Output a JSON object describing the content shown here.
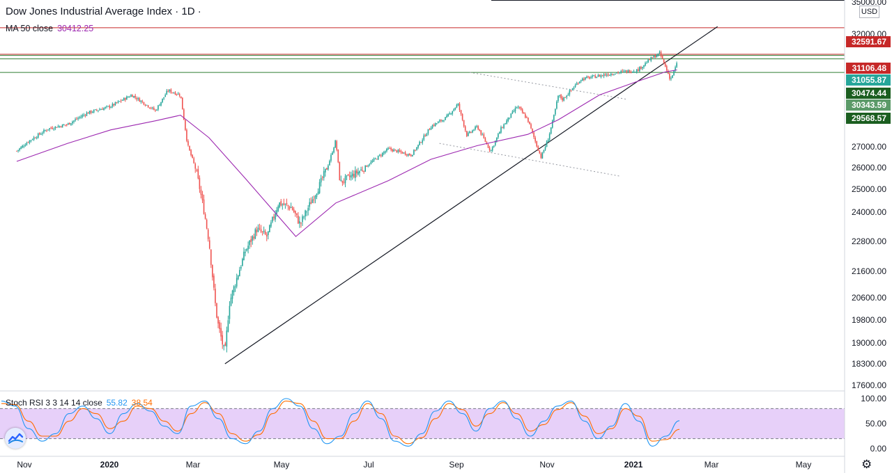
{
  "header": {
    "title": "Dow Jones Industrial Average Index · 1D ·",
    "ma_label": "MA 50 close",
    "ma_value": "30412.25",
    "currency": "USD"
  },
  "indicator": {
    "label": "Stoch RSI 3 3 14 14 close",
    "k_value": "55.82",
    "d_value": "38.54"
  },
  "colors": {
    "up": "#26a69a",
    "down": "#ef5350",
    "ma": "#9c27b0",
    "stoch_k": "#2196f3",
    "stoch_d": "#ff6d00",
    "band_fill": "#e1c4f7",
    "resistance": "#c62828",
    "support": "#2e7d32",
    "support_label": "#1b5e20",
    "mid_label": "#5b9a68"
  },
  "icons": {
    "logo": "tradingview-logo-icon",
    "settings": "gear-icon"
  },
  "chart_data": [
    {
      "type": "candlestick",
      "title": "Dow Jones Industrial Average Index · 1D ·",
      "x_ticks": [
        "Nov",
        "2020",
        "Mar",
        "May",
        "Jul",
        "Sep",
        "Nov",
        "2021",
        "Mar",
        "May"
      ],
      "y_ticks": [
        "35000.00",
        "32000.00",
        "27000.00",
        "26000.00",
        "25000.00",
        "24000.00",
        "22800.00",
        "21600.00",
        "20600.00",
        "19800.00",
        "19000.00",
        "18300.00",
        "17600.00"
      ],
      "ylim": [
        17200,
        35000
      ],
      "price_labels": [
        {
          "value": "32591.67",
          "style": "resistance"
        },
        {
          "value": "31106.48",
          "style": "resistance"
        },
        {
          "value": "31055.87",
          "style": "last"
        },
        {
          "value": "30474.44",
          "style": "support"
        },
        {
          "value": "30343.59",
          "style": "mid"
        },
        {
          "value": "29568.57",
          "style": "support"
        }
      ],
      "horizontal_levels": [
        {
          "value": 32591.67,
          "color": "resistance"
        },
        {
          "value": 31106.48,
          "color": "resistance"
        },
        {
          "value": 31055.87,
          "color": "support"
        },
        {
          "value": 30900,
          "color": "support"
        },
        {
          "value": 30300,
          "color": "support"
        }
      ],
      "series": [
        {
          "name": "Price",
          "x": [
            "2019-10-21",
            "2019-11-04",
            "2019-11-18",
            "2019-12-02",
            "2019-12-16",
            "2020-01-02",
            "2020-01-17",
            "2020-02-03",
            "2020-02-12",
            "2020-02-21",
            "2020-02-26",
            "2020-03-03",
            "2020-03-09",
            "2020-03-12",
            "2020-03-16",
            "2020-03-18",
            "2020-03-23",
            "2020-03-26",
            "2020-04-06",
            "2020-04-14",
            "2020-04-21",
            "2020-04-29",
            "2020-05-08",
            "2020-05-14",
            "2020-05-27",
            "2020-06-03",
            "2020-06-08",
            "2020-06-11",
            "2020-06-26",
            "2020-07-15",
            "2020-07-31",
            "2020-08-14",
            "2020-08-25",
            "2020-09-02",
            "2020-09-08",
            "2020-09-15",
            "2020-09-24",
            "2020-10-01",
            "2020-10-12",
            "2020-10-19",
            "2020-10-28",
            "2020-11-02",
            "2020-11-06",
            "2020-11-09",
            "2020-11-12",
            "2020-11-25",
            "2020-12-08",
            "2020-12-21",
            "2021-01-04",
            "2021-01-14",
            "2021-01-21",
            "2021-01-29",
            "2021-02-03"
          ],
          "values": [
            26800,
            27250,
            27800,
            28000,
            28500,
            28800,
            29300,
            28600,
            29500,
            29300,
            27100,
            25900,
            23900,
            22800,
            20500,
            19700,
            18600,
            20400,
            22400,
            23300,
            23000,
            24400,
            24200,
            23500,
            25100,
            26200,
            27300,
            25300,
            25900,
            26900,
            26600,
            27900,
            28300,
            28900,
            27500,
            27900,
            26800,
            27800,
            28800,
            28200,
            26500,
            27400,
            28400,
            29300,
            29100,
            30000,
            30150,
            30300,
            30400,
            30900,
            31150,
            29980,
            30700
          ]
        },
        {
          "name": "MA 50 close",
          "x": [
            "2019-10-21",
            "2019-12-02",
            "2020-01-02",
            "2020-02-03",
            "2020-02-21",
            "2020-03-12",
            "2020-04-06",
            "2020-05-11",
            "2020-06-08",
            "2020-07-15",
            "2020-08-14",
            "2020-09-15",
            "2020-10-19",
            "2020-11-09",
            "2020-12-08",
            "2021-01-04",
            "2021-01-25",
            "2021-02-03"
          ],
          "values": [
            26300,
            27150,
            27750,
            28150,
            28400,
            27400,
            25500,
            23000,
            24400,
            25400,
            26400,
            27050,
            27550,
            28200,
            29300,
            29900,
            30320,
            30412
          ]
        },
        {
          "name": "Trend line",
          "x": [
            "2020-03-23",
            "2021-03-05"
          ],
          "values": [
            18300,
            32700
          ]
        }
      ]
    },
    {
      "type": "line",
      "title": "Stoch RSI 3 3 14 14 close",
      "ylim": [
        0,
        100
      ],
      "y_ticks": [
        "100.00",
        "50.00",
        "0.00"
      ],
      "bands": [
        20,
        80
      ],
      "series": [
        {
          "name": "K",
          "values": [
            95,
            85,
            40,
            15,
            30,
            70,
            85,
            60,
            30,
            70,
            90,
            75,
            45,
            30,
            85,
            95,
            60,
            20,
            10,
            35,
            80,
            100,
            85,
            40,
            10,
            25,
            70,
            95,
            60,
            15,
            5,
            30,
            75,
            95,
            70,
            35,
            80,
            95,
            60,
            25,
            55,
            85,
            95,
            55,
            20,
            45,
            90,
            55,
            5,
            25,
            55.82
          ]
        },
        {
          "name": "D",
          "values": [
            90,
            88,
            55,
            25,
            25,
            55,
            80,
            70,
            40,
            55,
            85,
            80,
            55,
            35,
            70,
            92,
            70,
            30,
            15,
            28,
            70,
            95,
            90,
            55,
            20,
            20,
            55,
            90,
            70,
            25,
            10,
            22,
            60,
            90,
            78,
            45,
            70,
            92,
            70,
            35,
            48,
            78,
            92,
            65,
            30,
            40,
            80,
            65,
            15,
            18,
            38.54
          ]
        }
      ]
    }
  ]
}
